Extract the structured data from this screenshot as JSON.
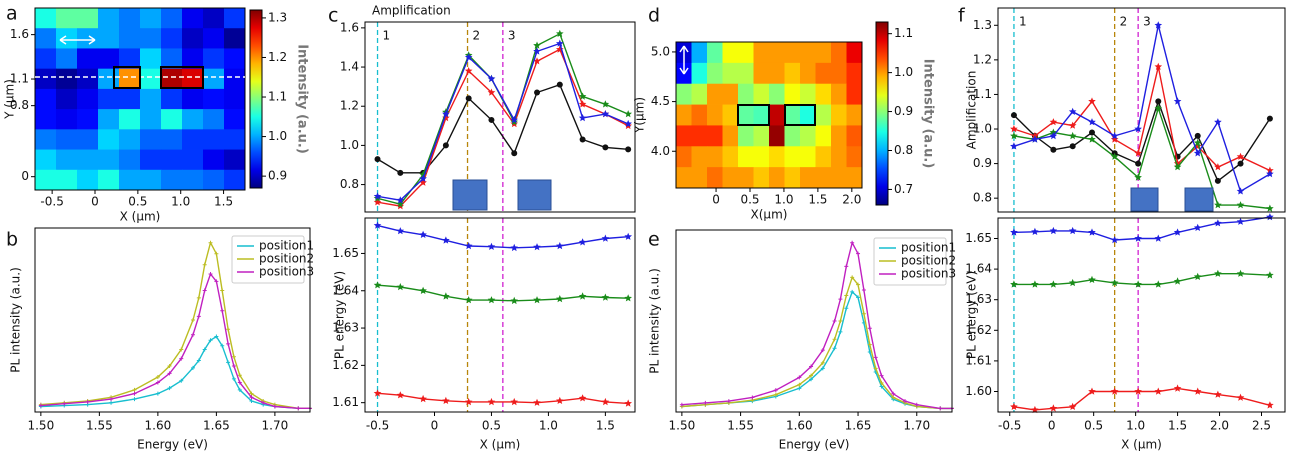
{
  "panel_labels": [
    "a",
    "b",
    "c",
    "d",
    "e",
    "f"
  ],
  "chart_data": [
    {
      "type": "heatmap",
      "xlabel": "X (μm)",
      "ylabel": "Y (μm)",
      "xlim": [
        -0.7,
        1.75
      ],
      "ylim": [
        -0.15,
        1.9
      ],
      "xticks": [
        -0.5,
        0,
        0.5,
        {
          "value": 1.0,
          "label": "1.0"
        },
        1.5
      ],
      "yticks": [
        0,
        0.8,
        1.1,
        1.6
      ],
      "colormap": "jet",
      "clim": [
        0.87,
        1.32
      ],
      "cticks": [
        0.9,
        {
          "value": 1.0,
          "label": "1.0"
        },
        1.1,
        1.2,
        1.3
      ],
      "clabel": "Intensity (a.u.)",
      "z": [
        [
          1.05,
          1.08,
          1.08,
          1.0,
          0.98,
          1.0,
          0.97,
          0.92,
          0.9,
          0.95
        ],
        [
          0.98,
          1.02,
          1.0,
          1.0,
          0.98,
          0.98,
          0.95,
          0.9,
          0.92,
          0.88
        ],
        [
          0.95,
          0.98,
          0.92,
          0.92,
          0.95,
          1.02,
          0.97,
          0.92,
          0.95,
          0.93
        ],
        [
          0.9,
          0.88,
          0.9,
          1.0,
          1.2,
          1.05,
          1.3,
          1.28,
          1.0,
          0.92
        ],
        [
          0.93,
          0.9,
          0.92,
          0.95,
          0.95,
          1.0,
          0.95,
          0.92,
          0.93,
          0.92
        ],
        [
          0.93,
          0.92,
          0.93,
          1.0,
          1.05,
          1.0,
          1.05,
          1.0,
          0.98,
          0.93
        ],
        [
          0.98,
          0.97,
          0.97,
          1.02,
          1.0,
          0.97,
          0.97,
          0.95,
          0.95,
          0.95
        ],
        [
          1.02,
          1.0,
          1.0,
          1.0,
          0.98,
          0.95,
          0.95,
          0.95,
          0.92,
          0.9
        ],
        [
          1.05,
          1.05,
          1.02,
          1.05,
          1.0,
          1.0,
          0.98,
          0.98,
          0.97,
          0.95
        ]
      ]
    },
    {
      "type": "line",
      "xlabel": "Energy (eV)",
      "ylabel": "PL intensity (a.u.)",
      "xlim": [
        1.495,
        1.73
      ],
      "ylim": [
        0,
        1
      ],
      "xticks": [
        {
          "value": 1.5,
          "label": "1.50"
        },
        1.55,
        {
          "value": 1.6,
          "label": "1.60"
        },
        1.65,
        {
          "value": 1.7,
          "label": "1.70"
        }
      ],
      "legend": "upper right",
      "x": [
        1.5,
        1.52,
        1.54,
        1.56,
        1.58,
        1.6,
        1.61,
        1.62,
        1.63,
        1.635,
        1.64,
        1.645,
        1.65,
        1.655,
        1.66,
        1.665,
        1.67,
        1.68,
        1.69,
        1.7,
        1.72,
        1.73
      ],
      "series": [
        {
          "name": "position1",
          "color": "#17becf",
          "marker": "plus",
          "values": [
            0.03,
            0.035,
            0.04,
            0.05,
            0.07,
            0.1,
            0.13,
            0.17,
            0.24,
            0.28,
            0.34,
            0.39,
            0.41,
            0.36,
            0.27,
            0.18,
            0.12,
            0.06,
            0.04,
            0.03,
            0.02,
            0.02
          ]
        },
        {
          "name": "position2",
          "color": "#bcbd22",
          "marker": "plus",
          "values": [
            0.04,
            0.05,
            0.06,
            0.08,
            0.12,
            0.19,
            0.25,
            0.34,
            0.5,
            0.62,
            0.8,
            0.92,
            0.86,
            0.66,
            0.45,
            0.3,
            0.2,
            0.1,
            0.06,
            0.04,
            0.02,
            0.02
          ]
        },
        {
          "name": "position3",
          "color": "#c020c0",
          "marker": "plus",
          "values": [
            0.035,
            0.045,
            0.055,
            0.07,
            0.1,
            0.16,
            0.21,
            0.29,
            0.42,
            0.52,
            0.66,
            0.75,
            0.71,
            0.55,
            0.37,
            0.25,
            0.16,
            0.08,
            0.05,
            0.03,
            0.02,
            0.02
          ]
        }
      ]
    },
    {
      "type": "line",
      "ylabel": "Amplification",
      "xlim": [
        -0.61,
        1.76
      ],
      "ylim": [
        0.66,
        1.63
      ],
      "yticks": [
        0.8,
        {
          "value": 1.0,
          "label": "1.0"
        },
        1.2,
        1.4,
        1.6
      ],
      "vlines": [
        {
          "x": -0.5,
          "label": "1",
          "color": "#17becf"
        },
        {
          "x": 0.29,
          "label": "2",
          "color": "#b8860b"
        },
        {
          "x": 0.6,
          "label": "3",
          "color": "#d020d0"
        }
      ],
      "x": [
        -0.5,
        -0.3,
        -0.1,
        0.1,
        0.3,
        0.5,
        0.7,
        0.9,
        1.1,
        1.3,
        1.5,
        1.7
      ],
      "series": [
        {
          "color": "#111111",
          "marker": "circle",
          "values": [
            0.93,
            0.86,
            0.86,
            1.0,
            1.24,
            1.13,
            0.96,
            1.27,
            1.31,
            1.03,
            0.99,
            0.98
          ]
        },
        {
          "color": "#ee1c1c",
          "marker": "star",
          "values": [
            0.71,
            0.69,
            0.81,
            1.14,
            1.38,
            1.27,
            1.11,
            1.43,
            1.49,
            1.21,
            1.16,
            1.1
          ]
        },
        {
          "color": "#1a8c1a",
          "marker": "star",
          "values": [
            0.73,
            0.7,
            0.85,
            1.17,
            1.46,
            1.34,
            1.12,
            1.51,
            1.57,
            1.25,
            1.21,
            1.16
          ]
        },
        {
          "color": "#1f1fe0",
          "marker": "star",
          "values": [
            0.74,
            0.72,
            0.83,
            1.16,
            1.45,
            1.34,
            1.13,
            1.48,
            1.52,
            1.14,
            1.16,
            1.11
          ]
        }
      ]
    },
    {
      "type": "line",
      "xlabel": "X (μm)",
      "ylabel": "PL energy (eV)",
      "xlim": [
        -0.61,
        1.76
      ],
      "ylim": [
        1.6075,
        1.6595
      ],
      "xticks": [
        -0.5,
        0,
        0.5,
        {
          "value": 1.0,
          "label": "1.0"
        },
        1.5
      ],
      "yticks": [
        1.61,
        1.62,
        1.63,
        1.64,
        1.65
      ],
      "vlines": [
        {
          "x": -0.5,
          "color": "#17becf"
        },
        {
          "x": 0.29,
          "color": "#b8860b"
        },
        {
          "x": 0.6,
          "color": "#d020d0"
        }
      ],
      "x": [
        -0.5,
        -0.3,
        -0.1,
        0.1,
        0.3,
        0.5,
        0.7,
        0.9,
        1.1,
        1.3,
        1.5,
        1.7
      ],
      "series": [
        {
          "color": "#1f1fe0",
          "marker": "star",
          "values": [
            1.6575,
            1.656,
            1.655,
            1.6535,
            1.652,
            1.6518,
            1.6515,
            1.6517,
            1.652,
            1.653,
            1.654,
            1.6545
          ]
        },
        {
          "color": "#1a8c1a",
          "marker": "star",
          "values": [
            1.6415,
            1.641,
            1.64,
            1.6385,
            1.6375,
            1.6375,
            1.6373,
            1.6375,
            1.6378,
            1.6385,
            1.6382,
            1.638
          ]
        },
        {
          "color": "#ee1c1c",
          "marker": "star",
          "values": [
            1.6125,
            1.612,
            1.611,
            1.6105,
            1.6102,
            1.6102,
            1.6102,
            1.61,
            1.6105,
            1.6112,
            1.6102,
            1.6098
          ]
        }
      ]
    },
    {
      "type": "heatmap",
      "xlabel": "X(μm)",
      "ylabel": "Y(μm)",
      "xlim": [
        -0.59,
        2.15
      ],
      "ylim": [
        3.63,
        5.1
      ],
      "xticks": [
        0,
        0.5,
        {
          "value": 1.0,
          "label": "1.0"
        },
        1.5,
        {
          "value": 2.0,
          "label": "2.0"
        }
      ],
      "yticks": [
        {
          "value": 4.0,
          "label": "4.0"
        },
        4.5,
        {
          "value": 5.0,
          "label": "5.0"
        }
      ],
      "colormap": "jet",
      "clim": [
        0.66,
        1.13
      ],
      "cticks": [
        0.7,
        0.8,
        0.9,
        {
          "value": 1.0,
          "label": "1.0"
        },
        1.1
      ],
      "clabel": "Intensity (a.u.)",
      "z": [
        [
          0.7,
          0.8,
          0.88,
          0.95,
          0.95,
          1.0,
          1.0,
          1.0,
          1.0,
          1.0,
          1.02,
          1.08
        ],
        [
          0.72,
          0.85,
          0.9,
          0.92,
          0.92,
          1.0,
          1.0,
          0.98,
          1.0,
          1.02,
          1.02,
          1.05
        ],
        [
          0.9,
          0.92,
          1.0,
          1.0,
          0.9,
          0.93,
          0.9,
          0.95,
          0.93,
          0.97,
          1.0,
          1.05
        ],
        [
          1.0,
          1.02,
          1.0,
          0.98,
          0.88,
          0.87,
          1.1,
          0.88,
          0.85,
          0.92,
          0.98,
          1.0
        ],
        [
          1.05,
          1.05,
          1.05,
          1.0,
          0.9,
          0.92,
          1.12,
          0.9,
          0.92,
          0.95,
          1.0,
          1.03
        ],
        [
          1.02,
          1.0,
          1.0,
          0.98,
          0.95,
          0.95,
          0.97,
          0.95,
          0.95,
          0.98,
          1.0,
          1.02
        ],
        [
          1.0,
          1.0,
          1.02,
          1.0,
          1.0,
          0.98,
          1.0,
          0.98,
          1.0,
          1.0,
          1.0,
          1.0
        ]
      ]
    },
    {
      "type": "line",
      "xlabel": "Energy (eV)",
      "ylabel": "PL intensity (a.u.)",
      "xlim": [
        1.495,
        1.73
      ],
      "ylim": [
        0,
        1
      ],
      "xticks": [
        {
          "value": 1.5,
          "label": "1.50"
        },
        1.55,
        {
          "value": 1.6,
          "label": "1.60"
        },
        1.65,
        {
          "value": 1.7,
          "label": "1.70"
        }
      ],
      "legend": "upper right",
      "x": [
        1.5,
        1.52,
        1.54,
        1.56,
        1.58,
        1.6,
        1.61,
        1.62,
        1.63,
        1.635,
        1.64,
        1.645,
        1.65,
        1.655,
        1.66,
        1.665,
        1.67,
        1.68,
        1.69,
        1.7,
        1.72,
        1.73
      ],
      "series": [
        {
          "name": "position1",
          "color": "#17becf",
          "marker": "plus",
          "values": [
            0.03,
            0.04,
            0.05,
            0.06,
            0.085,
            0.13,
            0.18,
            0.24,
            0.35,
            0.44,
            0.57,
            0.66,
            0.63,
            0.49,
            0.33,
            0.22,
            0.14,
            0.07,
            0.045,
            0.03,
            0.02,
            0.02
          ]
        },
        {
          "name": "position2",
          "color": "#bcbd22",
          "marker": "plus",
          "values": [
            0.03,
            0.04,
            0.05,
            0.065,
            0.095,
            0.15,
            0.2,
            0.27,
            0.4,
            0.5,
            0.64,
            0.74,
            0.7,
            0.54,
            0.37,
            0.24,
            0.16,
            0.08,
            0.05,
            0.03,
            0.02,
            0.02
          ]
        },
        {
          "name": "position3",
          "color": "#c020c0",
          "marker": "plus",
          "values": [
            0.04,
            0.05,
            0.06,
            0.08,
            0.12,
            0.19,
            0.25,
            0.34,
            0.5,
            0.62,
            0.8,
            0.93,
            0.87,
            0.67,
            0.46,
            0.3,
            0.2,
            0.1,
            0.06,
            0.04,
            0.02,
            0.02
          ]
        }
      ]
    },
    {
      "type": "line",
      "ylabel": "Amplification",
      "xlim": [
        -0.64,
        2.78
      ],
      "ylim": [
        0.76,
        1.35
      ],
      "yticks": [
        {
          "value": 0.8,
          "label": "0.8"
        },
        {
          "value": 0.9,
          "label": "0.9"
        },
        {
          "value": 1.0,
          "label": "1.0"
        },
        1.1,
        1.2,
        1.3
      ],
      "vlines": [
        {
          "x": -0.45,
          "label": "1",
          "color": "#17becf"
        },
        {
          "x": 0.75,
          "label": "2",
          "color": "#b8860b"
        },
        {
          "x": 1.03,
          "label": "3",
          "color": "#d020d0"
        }
      ],
      "x": [
        -0.45,
        -0.2,
        0.02,
        0.25,
        0.48,
        0.75,
        1.03,
        1.27,
        1.5,
        1.74,
        1.98,
        2.25,
        2.6
      ],
      "series": [
        {
          "color": "#111111",
          "marker": "circle",
          "values": [
            1.04,
            0.98,
            0.94,
            0.95,
            0.99,
            0.93,
            0.9,
            1.08,
            0.92,
            0.98,
            0.85,
            0.9,
            1.03
          ]
        },
        {
          "color": "#ee1c1c",
          "marker": "star",
          "values": [
            1.0,
            0.98,
            1.02,
            1.01,
            1.08,
            0.97,
            0.93,
            1.18,
            0.9,
            0.95,
            0.89,
            0.92,
            0.88
          ]
        },
        {
          "color": "#1a8c1a",
          "marker": "star",
          "values": [
            0.98,
            0.97,
            0.99,
            0.98,
            0.97,
            0.92,
            0.86,
            1.06,
            0.89,
            0.96,
            0.78,
            0.78,
            0.77
          ]
        },
        {
          "color": "#1f1fe0",
          "marker": "star",
          "values": [
            0.95,
            0.97,
            0.98,
            1.05,
            1.02,
            0.98,
            1.0,
            1.3,
            1.08,
            0.93,
            1.02,
            0.82,
            0.87
          ]
        }
      ]
    },
    {
      "type": "line",
      "xlabel": "X (μm)",
      "ylabel": "PL energy (eV)",
      "xlim": [
        -0.64,
        2.78
      ],
      "ylim": [
        1.5933,
        1.6567
      ],
      "xticks": [
        -0.5,
        0,
        0.5,
        {
          "value": 1.0,
          "label": "1.0"
        },
        1.5,
        {
          "value": 2.0,
          "label": "2.0"
        },
        2.5
      ],
      "yticks": [
        {
          "value": 1.6,
          "label": "1.60"
        },
        1.61,
        1.62,
        1.63,
        1.64,
        1.65
      ],
      "vlines": [
        {
          "x": -0.45,
          "color": "#17becf"
        },
        {
          "x": 0.75,
          "color": "#b8860b"
        },
        {
          "x": 1.03,
          "color": "#d020d0"
        }
      ],
      "x": [
        -0.45,
        -0.2,
        0.02,
        0.25,
        0.48,
        0.75,
        1.03,
        1.27,
        1.5,
        1.74,
        1.98,
        2.25,
        2.6
      ],
      "series": [
        {
          "color": "#1f1fe0",
          "marker": "star",
          "values": [
            1.652,
            1.6522,
            1.6525,
            1.6525,
            1.652,
            1.6495,
            1.65,
            1.65,
            1.652,
            1.6535,
            1.655,
            1.6555,
            1.657
          ]
        },
        {
          "color": "#1a8c1a",
          "marker": "star",
          "values": [
            1.635,
            1.635,
            1.635,
            1.6355,
            1.6365,
            1.6355,
            1.635,
            1.635,
            1.636,
            1.6375,
            1.6385,
            1.6385,
            1.638
          ]
        },
        {
          "color": "#ee1c1c",
          "marker": "star",
          "values": [
            1.595,
            1.594,
            1.5945,
            1.595,
            1.6,
            1.6,
            1.6,
            1.6,
            1.601,
            1.6,
            1.599,
            1.598,
            1.5955
          ]
        }
      ]
    }
  ]
}
